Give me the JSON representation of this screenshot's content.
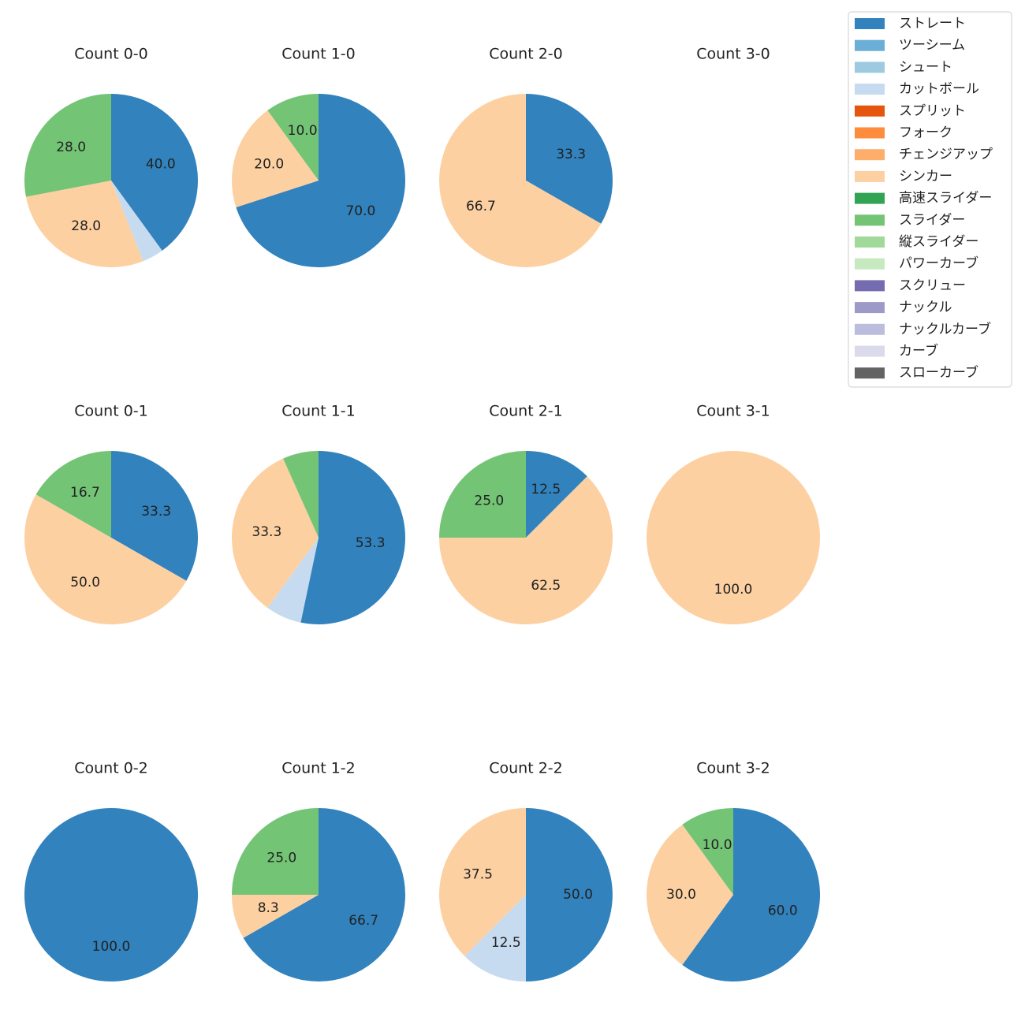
{
  "legend": {
    "items": [
      {
        "name": "ストレート",
        "color": "#3182bd"
      },
      {
        "name": "ツーシーム",
        "color": "#6baed6"
      },
      {
        "name": "シュート",
        "color": "#9ecae1"
      },
      {
        "name": "カットボール",
        "color": "#c6dbef"
      },
      {
        "name": "スプリット",
        "color": "#e6550d"
      },
      {
        "name": "フォーク",
        "color": "#fd8d3c"
      },
      {
        "name": "チェンジアップ",
        "color": "#fdae6b"
      },
      {
        "name": "シンカー",
        "color": "#fdd0a2"
      },
      {
        "name": "高速スライダー",
        "color": "#31a354"
      },
      {
        "name": "スライダー",
        "color": "#74c476"
      },
      {
        "name": "縦スライダー",
        "color": "#a1d99b"
      },
      {
        "name": "パワーカーブ",
        "color": "#c7e9c0"
      },
      {
        "name": "スクリュー",
        "color": "#756bb1"
      },
      {
        "name": "ナックル",
        "color": "#9e9ac8"
      },
      {
        "name": "ナックルカーブ",
        "color": "#bcbddc"
      },
      {
        "name": "カーブ",
        "color": "#dadaeb"
      },
      {
        "name": "スローカーブ",
        "color": "#636363"
      }
    ]
  },
  "chart_data": [
    {
      "type": "pie",
      "title": "Count 0-0",
      "categories": [
        "ストレート",
        "カットボール",
        "シンカー",
        "スライダー"
      ],
      "values": [
        40,
        4,
        28,
        28
      ],
      "value_labels": [
        "40.0",
        null,
        "28.0",
        "28.0"
      ]
    },
    {
      "type": "pie",
      "title": "Count 1-0",
      "categories": [
        "ストレート",
        "シンカー",
        "スライダー"
      ],
      "values": [
        70,
        20,
        10
      ],
      "value_labels": [
        "70.0",
        "20.0",
        "10.0"
      ]
    },
    {
      "type": "pie",
      "title": "Count 2-0",
      "categories": [
        "ストレート",
        "シンカー"
      ],
      "values": [
        33.3,
        66.7
      ],
      "value_labels": [
        "33.3",
        "66.7"
      ]
    },
    {
      "type": "pie",
      "title": "Count 3-0",
      "categories": [],
      "values": [],
      "value_labels": []
    },
    {
      "type": "pie",
      "title": "Count 0-1",
      "categories": [
        "ストレート",
        "シンカー",
        "スライダー"
      ],
      "values": [
        33.3,
        50,
        16.7
      ],
      "value_labels": [
        "33.3",
        "50.0",
        "16.7"
      ]
    },
    {
      "type": "pie",
      "title": "Count 1-1",
      "categories": [
        "ストレート",
        "カットボール",
        "シンカー",
        "スライダー"
      ],
      "values": [
        53.3,
        6.7,
        33.3,
        6.7
      ],
      "value_labels": [
        "53.3",
        null,
        "33.3",
        null
      ]
    },
    {
      "type": "pie",
      "title": "Count 2-1",
      "categories": [
        "ストレート",
        "シンカー",
        "スライダー"
      ],
      "values": [
        12.5,
        62.5,
        25
      ],
      "value_labels": [
        "12.5",
        "62.5",
        "25.0"
      ]
    },
    {
      "type": "pie",
      "title": "Count 3-1",
      "categories": [
        "シンカー"
      ],
      "values": [
        100
      ],
      "value_labels": [
        "100.0"
      ]
    },
    {
      "type": "pie",
      "title": "Count 0-2",
      "categories": [
        "ストレート"
      ],
      "values": [
        100
      ],
      "value_labels": [
        "100.0"
      ]
    },
    {
      "type": "pie",
      "title": "Count 1-2",
      "categories": [
        "ストレート",
        "シンカー",
        "スライダー"
      ],
      "values": [
        66.7,
        8.3,
        25
      ],
      "value_labels": [
        "66.7",
        "8.3",
        "25.0"
      ]
    },
    {
      "type": "pie",
      "title": "Count 2-2",
      "categories": [
        "ストレート",
        "カットボール",
        "シンカー"
      ],
      "values": [
        50,
        12.5,
        37.5
      ],
      "value_labels": [
        "50.0",
        "12.5",
        "37.5"
      ]
    },
    {
      "type": "pie",
      "title": "Count 3-2",
      "categories": [
        "ストレート",
        "シンカー",
        "スライダー"
      ],
      "values": [
        60,
        30,
        10
      ],
      "value_labels": [
        "60.0",
        "30.0",
        "10.0"
      ]
    }
  ]
}
